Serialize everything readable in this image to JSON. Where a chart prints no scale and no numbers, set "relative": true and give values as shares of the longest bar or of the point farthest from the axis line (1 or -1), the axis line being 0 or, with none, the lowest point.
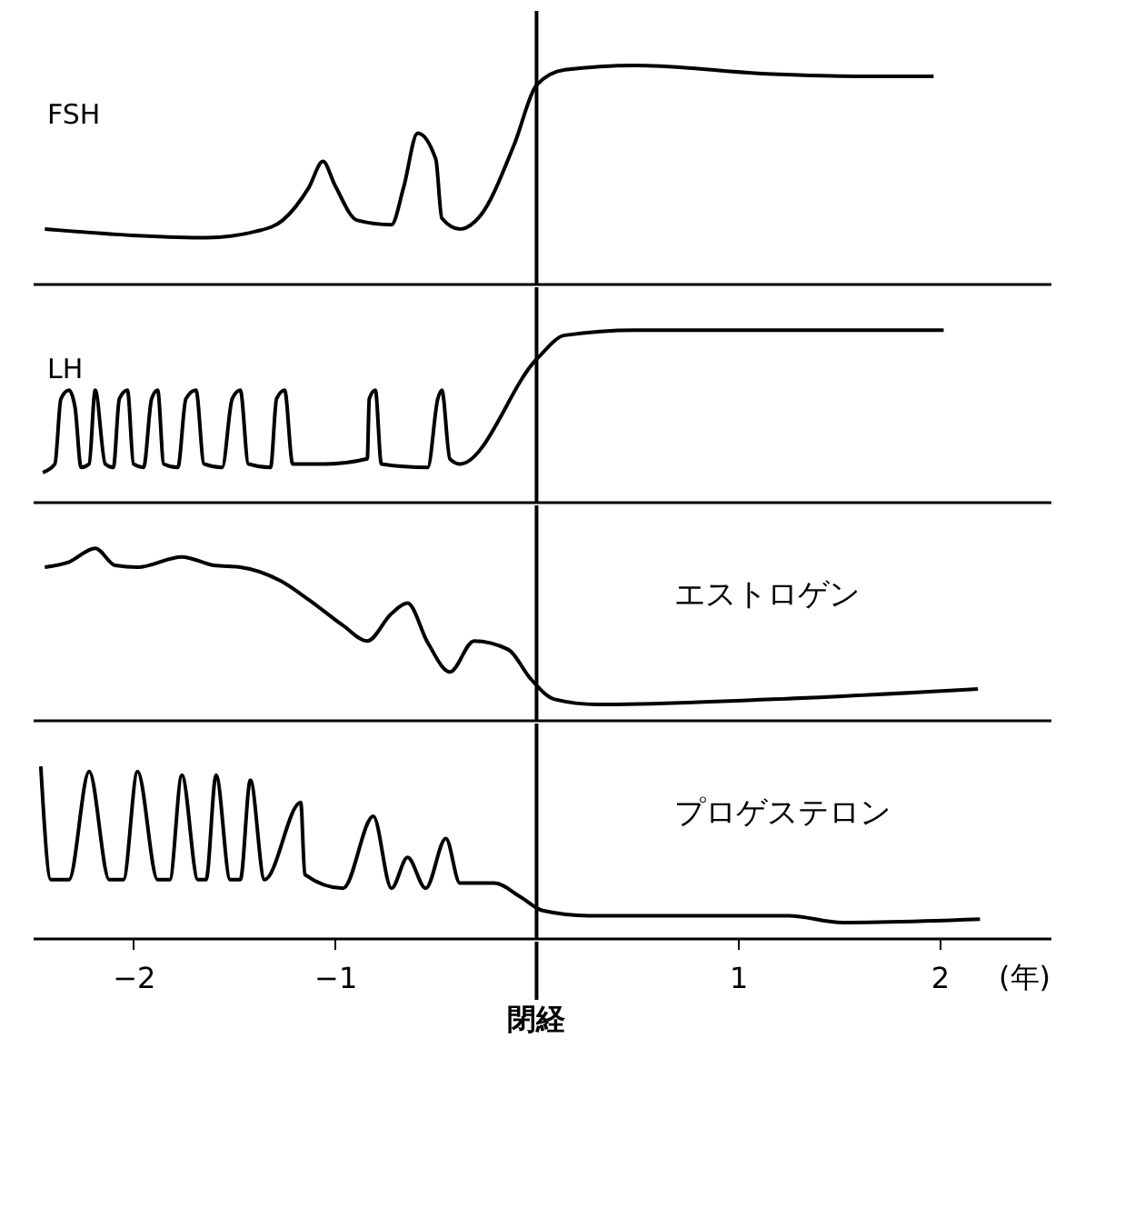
{
  "chart_data": [
    {
      "type": "line",
      "relative": true,
      "xlim": [
        -2.5,
        2.55
      ],
      "tick_labels": false,
      "ref_lines": [
        {
          "axis": "x",
          "value": 0
        }
      ],
      "x": [
        -2.44,
        -1.98,
        -1.64,
        -1.39,
        -1.26,
        -1.13,
        -1.06,
        -1.0,
        -0.89,
        -0.72,
        -0.66,
        -0.59,
        -0.5,
        -0.47,
        -0.38,
        -0.28,
        -0.11,
        0,
        0.14,
        0.49,
        1.17,
        1.59,
        1.97
      ],
      "series": [
        {
          "name": "FSH",
          "color": "#000000",
          "values": [
            0.25,
            0.22,
            0.21,
            0.24,
            0.29,
            0.44,
            0.56,
            0.45,
            0.29,
            0.27,
            0.44,
            0.69,
            0.57,
            0.3,
            0.25,
            0.31,
            0.64,
            0.91,
            0.98,
            1,
            0.96,
            0.95,
            0.95
          ]
        }
      ]
    },
    {
      "type": "line",
      "relative": true,
      "xlim": [
        -2.5,
        2.55
      ],
      "tick_labels": false,
      "ref_lines": [
        {
          "axis": "x",
          "value": 0
        }
      ],
      "x": [
        -2.45,
        -2.39,
        -2.36,
        -2.32,
        -2.29,
        -2.26,
        -2.22,
        -2.19,
        -2.14,
        -2.1,
        -2.07,
        -2.03,
        -2.0,
        -1.95,
        -1.91,
        -1.88,
        -1.85,
        -1.78,
        -1.74,
        -1.69,
        -1.65,
        -1.56,
        -1.51,
        -1.47,
        -1.43,
        -1.32,
        -1.29,
        -1.25,
        -1.21,
        -1.05,
        -0.84,
        -0.83,
        -0.8,
        -0.77,
        -0.54,
        -0.49,
        -0.47,
        -0.43,
        -0.38,
        0,
        0.14,
        0.49,
        2.02
      ],
      "series": [
        {
          "name": "LH",
          "color": "#000000",
          "values": [
            0.17,
            0.22,
            0.6,
            0.65,
            0.55,
            0.2,
            0.22,
            0.65,
            0.22,
            0.2,
            0.6,
            0.65,
            0.22,
            0.2,
            0.6,
            0.65,
            0.22,
            0.2,
            0.6,
            0.65,
            0.22,
            0.2,
            0.6,
            0.65,
            0.22,
            0.2,
            0.6,
            0.65,
            0.22,
            0.22,
            0.25,
            0.6,
            0.65,
            0.22,
            0.2,
            0.6,
            0.65,
            0.25,
            0.22,
            0.83,
            0.97,
            1,
            1
          ]
        }
      ]
    },
    {
      "type": "line",
      "relative": true,
      "xlim": [
        -2.5,
        2.55
      ],
      "tick_labels": false,
      "ref_lines": [
        {
          "axis": "x",
          "value": 0
        }
      ],
      "x": [
        -2.44,
        -2.32,
        -2.19,
        -2.09,
        -1.98,
        -1.76,
        -1.6,
        -1.47,
        -1.27,
        -1.13,
        -0.96,
        -0.84,
        -0.72,
        -0.64,
        -0.54,
        -0.43,
        -0.31,
        -0.14,
        -0.03,
        0.09,
        0.3,
        1.17,
        2.19
      ],
      "series": [
        {
          "name": "エストロゲン",
          "color": "#000000",
          "values": [
            0.89,
            0.92,
            1,
            0.9,
            0.89,
            0.95,
            0.9,
            0.89,
            0.81,
            0.7,
            0.55,
            0.46,
            0.62,
            0.68,
            0.45,
            0.28,
            0.46,
            0.41,
            0.24,
            0.12,
            0.09,
            0.12,
            0.18
          ]
        }
      ]
    },
    {
      "type": "line",
      "relative": true,
      "xlim": [
        -2.5,
        2.55
      ],
      "xticks": [
        -2,
        -1,
        1,
        2
      ],
      "xlabel": "(年)",
      "tick_labels": "x",
      "ref_lines": [
        {
          "axis": "x",
          "value": 0,
          "label": "閉経"
        }
      ],
      "x": [
        -2.46,
        -2.41,
        -2.32,
        -2.22,
        -2.12,
        -2.05,
        -1.98,
        -1.88,
        -1.82,
        -1.76,
        -1.68,
        -1.64,
        -1.59,
        -1.52,
        -1.47,
        -1.42,
        -1.35,
        -1.17,
        -1.15,
        -0.96,
        -0.81,
        -0.72,
        -0.64,
        -0.55,
        -0.45,
        -0.38,
        -0.21,
        -0.08,
        0.03,
        0.26,
        1.25,
        1.52,
        2.2
      ],
      "series": [
        {
          "name": "プロゲステロン",
          "color": "#000000",
          "values": [
            1,
            0.34,
            0.34,
            0.97,
            0.34,
            0.34,
            0.97,
            0.34,
            0.34,
            0.95,
            0.34,
            0.34,
            0.95,
            0.34,
            0.34,
            0.92,
            0.34,
            0.79,
            0.37,
            0.29,
            0.71,
            0.29,
            0.47,
            0.29,
            0.58,
            0.32,
            0.32,
            0.24,
            0.16,
            0.13,
            0.13,
            0.09,
            0.11
          ]
        }
      ]
    }
  ]
}
